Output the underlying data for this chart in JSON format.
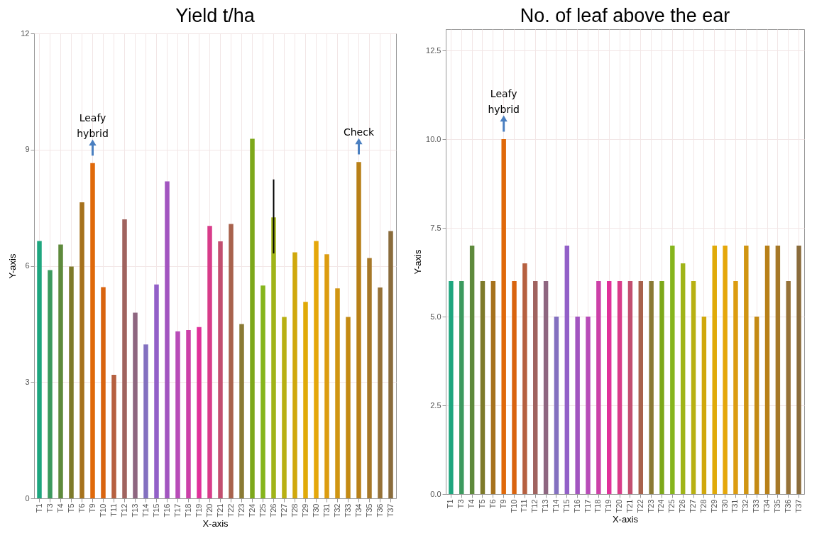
{
  "chart_data": [
    {
      "type": "bar",
      "title": "Yield t/ha",
      "xlabel": "X-axis",
      "ylabel": "Y-axis",
      "categories": [
        "T1",
        "T3",
        "T4",
        "T5",
        "T6",
        "T9",
        "T10",
        "T11",
        "T12",
        "T13",
        "T14",
        "T15",
        "T16",
        "T17",
        "T18",
        "T19",
        "T20",
        "T21",
        "T22",
        "T23",
        "T24",
        "T25",
        "T26",
        "T27",
        "T28",
        "T29",
        "T30",
        "T31",
        "T32",
        "T33",
        "T34",
        "T35",
        "T36",
        "T37"
      ],
      "values": [
        6.64,
        5.89,
        6.55,
        5.98,
        7.64,
        8.65,
        5.45,
        3.19,
        7.2,
        4.79,
        3.97,
        5.52,
        8.18,
        4.31,
        4.34,
        4.42,
        7.03,
        6.63,
        7.08,
        4.5,
        9.28,
        5.49,
        7.25,
        4.68,
        6.35,
        5.07,
        6.64,
        6.3,
        5.42,
        4.68,
        8.68,
        6.2,
        5.44,
        6.9
      ],
      "errors": [
        null,
        null,
        null,
        null,
        null,
        null,
        null,
        null,
        null,
        null,
        null,
        null,
        null,
        null,
        null,
        null,
        null,
        null,
        null,
        null,
        null,
        null,
        [
          6.32,
          8.23
        ],
        null,
        null,
        null,
        null,
        null,
        null,
        null,
        null,
        null,
        null,
        null
      ],
      "colors": [
        "#1fa67f",
        "#3c9a5f",
        "#5e8a3c",
        "#7e7a2a",
        "#a6721d",
        "#e0690a",
        "#d9640f",
        "#b66040",
        "#a0635f",
        "#8e6680",
        "#8370c0",
        "#9260c8",
        "#a255c0",
        "#b84cb8",
        "#cc40a8",
        "#e0309a",
        "#d83c8a",
        "#c24f70",
        "#a8624c",
        "#8a7a34",
        "#7da81a",
        "#86b51c",
        "#a0b418",
        "#b8b012",
        "#d0a80c",
        "#e0aa08",
        "#e5a70a",
        "#dc9c10",
        "#d09512",
        "#c48a14",
        "#b88018",
        "#a67828",
        "#967238",
        "#8a6c3c"
      ],
      "ylim": [
        0,
        12
      ],
      "yticks": [
        0,
        3,
        6,
        9,
        12
      ],
      "grid": true,
      "annotations": [
        {
          "text": "Leafy hybrid",
          "x": "T9",
          "y": 8.65
        },
        {
          "text": "Check",
          "x": "T34",
          "y": 8.68
        }
      ]
    },
    {
      "type": "bar",
      "title": "No. of leaf above the ear",
      "xlabel": "X-axis",
      "ylabel": "Y-axis",
      "categories": [
        "T1",
        "T3",
        "T4",
        "T5",
        "T6",
        "T9",
        "T10",
        "T11",
        "T12",
        "T13",
        "T14",
        "T15",
        "T16",
        "T17",
        "T18",
        "T19",
        "T20",
        "T21",
        "T22",
        "T23",
        "T24",
        "T25",
        "T26",
        "T27",
        "T28",
        "T29",
        "T30",
        "T31",
        "T32",
        "T33",
        "T34",
        "T35",
        "T36",
        "T37"
      ],
      "values": [
        6,
        6,
        7,
        6,
        6,
        10,
        6,
        6.5,
        6,
        6,
        5,
        7,
        5,
        5,
        6,
        6,
        6,
        6,
        6,
        6,
        6,
        7,
        6.5,
        6,
        5,
        7,
        7,
        6,
        7,
        5,
        7,
        7,
        6,
        7
      ],
      "colors": [
        "#1fa67f",
        "#3c9a5f",
        "#5e8a3c",
        "#7e7a2a",
        "#a6721d",
        "#e0690a",
        "#d9640f",
        "#b66040",
        "#a0635f",
        "#8e6680",
        "#8370c0",
        "#9260c8",
        "#a255c0",
        "#b84cb8",
        "#cc40a8",
        "#e0309a",
        "#d83c8a",
        "#c24f70",
        "#a8624c",
        "#8a7a34",
        "#7da81a",
        "#86b51c",
        "#a0b418",
        "#b8b012",
        "#d0a80c",
        "#e0aa08",
        "#e5a70a",
        "#dc9c10",
        "#d09512",
        "#c48a14",
        "#b88018",
        "#a67828",
        "#967238",
        "#8a6c3c"
      ],
      "ylim": [
        0,
        13.1
      ],
      "yticks": [
        {
          "value": 0,
          "label": "0.0"
        },
        {
          "value": 2.5,
          "label": "2.5"
        },
        {
          "value": 5,
          "label": "5.0"
        },
        {
          "value": 7.5,
          "label": "7.5"
        },
        {
          "value": 10,
          "label": "10.0"
        },
        {
          "value": 12.5,
          "label": "12.5"
        }
      ],
      "grid": true,
      "annotations": [
        {
          "text": "Leafy hybrid",
          "x": "T9",
          "y": 10
        }
      ]
    }
  ]
}
